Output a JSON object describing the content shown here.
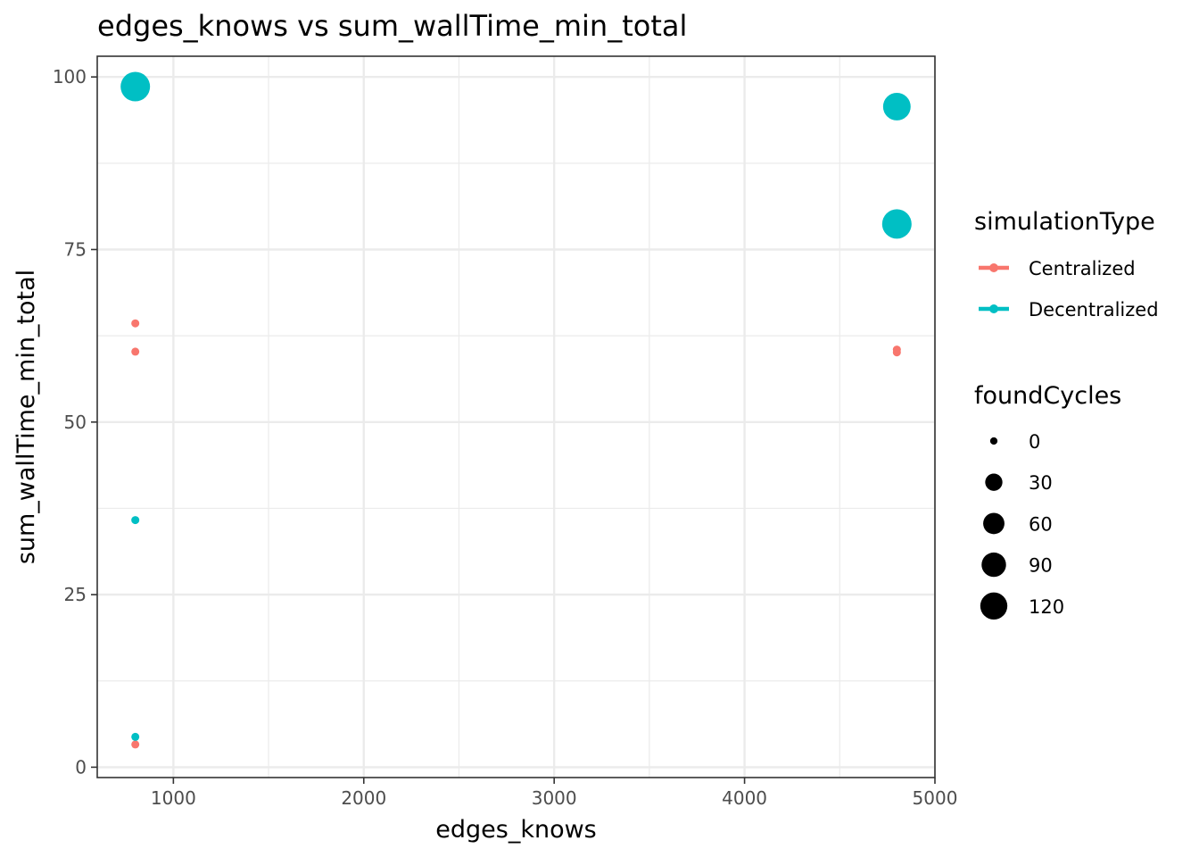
{
  "chart_data": {
    "type": "scatter",
    "title": "edges_knows  vs  sum_wallTime_min_total",
    "xlabel": "edges_knows",
    "ylabel": "sum_wallTime_min_total",
    "xlim": [
      600,
      5000
    ],
    "ylim": [
      -1.5,
      103
    ],
    "x_ticks": [
      1000,
      2000,
      3000,
      4000,
      5000
    ],
    "x_minor": [
      1500,
      2500,
      3500,
      4500
    ],
    "y_ticks": [
      0,
      25,
      50,
      75,
      100
    ],
    "y_minor": [
      12.5,
      37.5,
      62.5,
      87.5
    ],
    "grid": true,
    "legend_placement": "right",
    "color_legend": {
      "title": "simulationType",
      "entries": [
        {
          "label": "Centralized",
          "color": "#f8766d"
        },
        {
          "label": "Decentralized",
          "color": "#00bfc4"
        }
      ]
    },
    "size_legend": {
      "title": "foundCycles",
      "entries": [
        {
          "label": "0",
          "value": 0
        },
        {
          "label": "30",
          "value": 30
        },
        {
          "label": "60",
          "value": 60
        },
        {
          "label": "90",
          "value": 90
        },
        {
          "label": "120",
          "value": 120
        }
      ]
    },
    "series": [
      {
        "type": "Centralized",
        "color": "#f8766d",
        "points": [
          {
            "x": 800,
            "y": 64.3,
            "size": 0
          },
          {
            "x": 800,
            "y": 60.2,
            "size": 0
          },
          {
            "x": 800,
            "y": 3.3,
            "size": 0
          },
          {
            "x": 4800,
            "y": 60.5,
            "size": 0
          },
          {
            "x": 4800,
            "y": 60.1,
            "size": 0
          }
        ]
      },
      {
        "type": "Decentralized",
        "color": "#00bfc4",
        "points": [
          {
            "x": 800,
            "y": 98.6,
            "size": 120
          },
          {
            "x": 800,
            "y": 35.8,
            "size": 0
          },
          {
            "x": 800,
            "y": 4.4,
            "size": 0
          },
          {
            "x": 4800,
            "y": 95.7,
            "size": 100
          },
          {
            "x": 4800,
            "y": 78.7,
            "size": 120
          }
        ]
      }
    ]
  }
}
